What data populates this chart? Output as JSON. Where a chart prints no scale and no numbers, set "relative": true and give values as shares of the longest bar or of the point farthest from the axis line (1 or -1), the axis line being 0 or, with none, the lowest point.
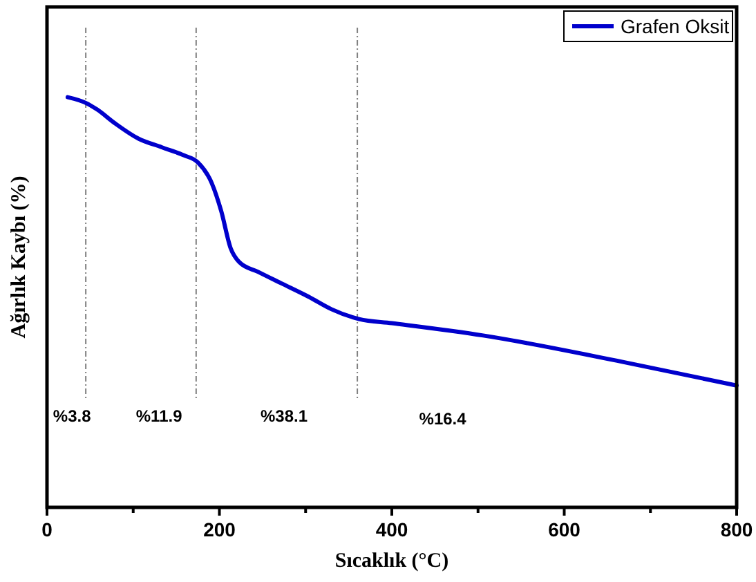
{
  "chart_data": {
    "type": "line",
    "relative": true,
    "xlabel": "Sıcaklık (°C)",
    "ylabel": "Ağırlık Kaybı (%)",
    "xlim": [
      0,
      800
    ],
    "xticks": [
      0,
      {
        "value": 100,
        "label": null
      },
      200,
      {
        "value": 300,
        "label": null
      },
      400,
      {
        "value": 500,
        "label": null
      },
      600,
      {
        "value": 700,
        "label": null
      },
      800
    ],
    "series": [
      {
        "name": "Grafen Oksit",
        "color": "#0000cc",
        "x": [
          24,
          45,
          58,
          79,
          106,
          133,
          159,
          175,
          191,
          202,
          213,
          223,
          245,
          271,
          303,
          330,
          362,
          400,
          506,
          667,
          800
        ],
        "values": [
          1.0,
          0.986,
          0.97,
          0.936,
          0.899,
          0.878,
          0.858,
          0.841,
          0.791,
          0.723,
          0.632,
          0.598,
          0.574,
          0.547,
          0.514,
          0.483,
          0.459,
          0.449,
          0.419,
          0.355,
          0.297
        ]
      }
    ],
    "ref_lines": [
      {
        "axis": "x",
        "value": 45,
        "color": "#808080",
        "line_style": "dashed"
      },
      {
        "axis": "x",
        "value": 173,
        "color": "#808080",
        "line_style": "dashed"
      },
      {
        "axis": "x",
        "value": 360,
        "color": "#808080",
        "line_style": "dashed"
      }
    ],
    "annotations": [
      "%3.8",
      "%11.9",
      "%38.1",
      "%16.4"
    ],
    "legend": "top right",
    "line_style": "solid",
    "marker": "none"
  }
}
